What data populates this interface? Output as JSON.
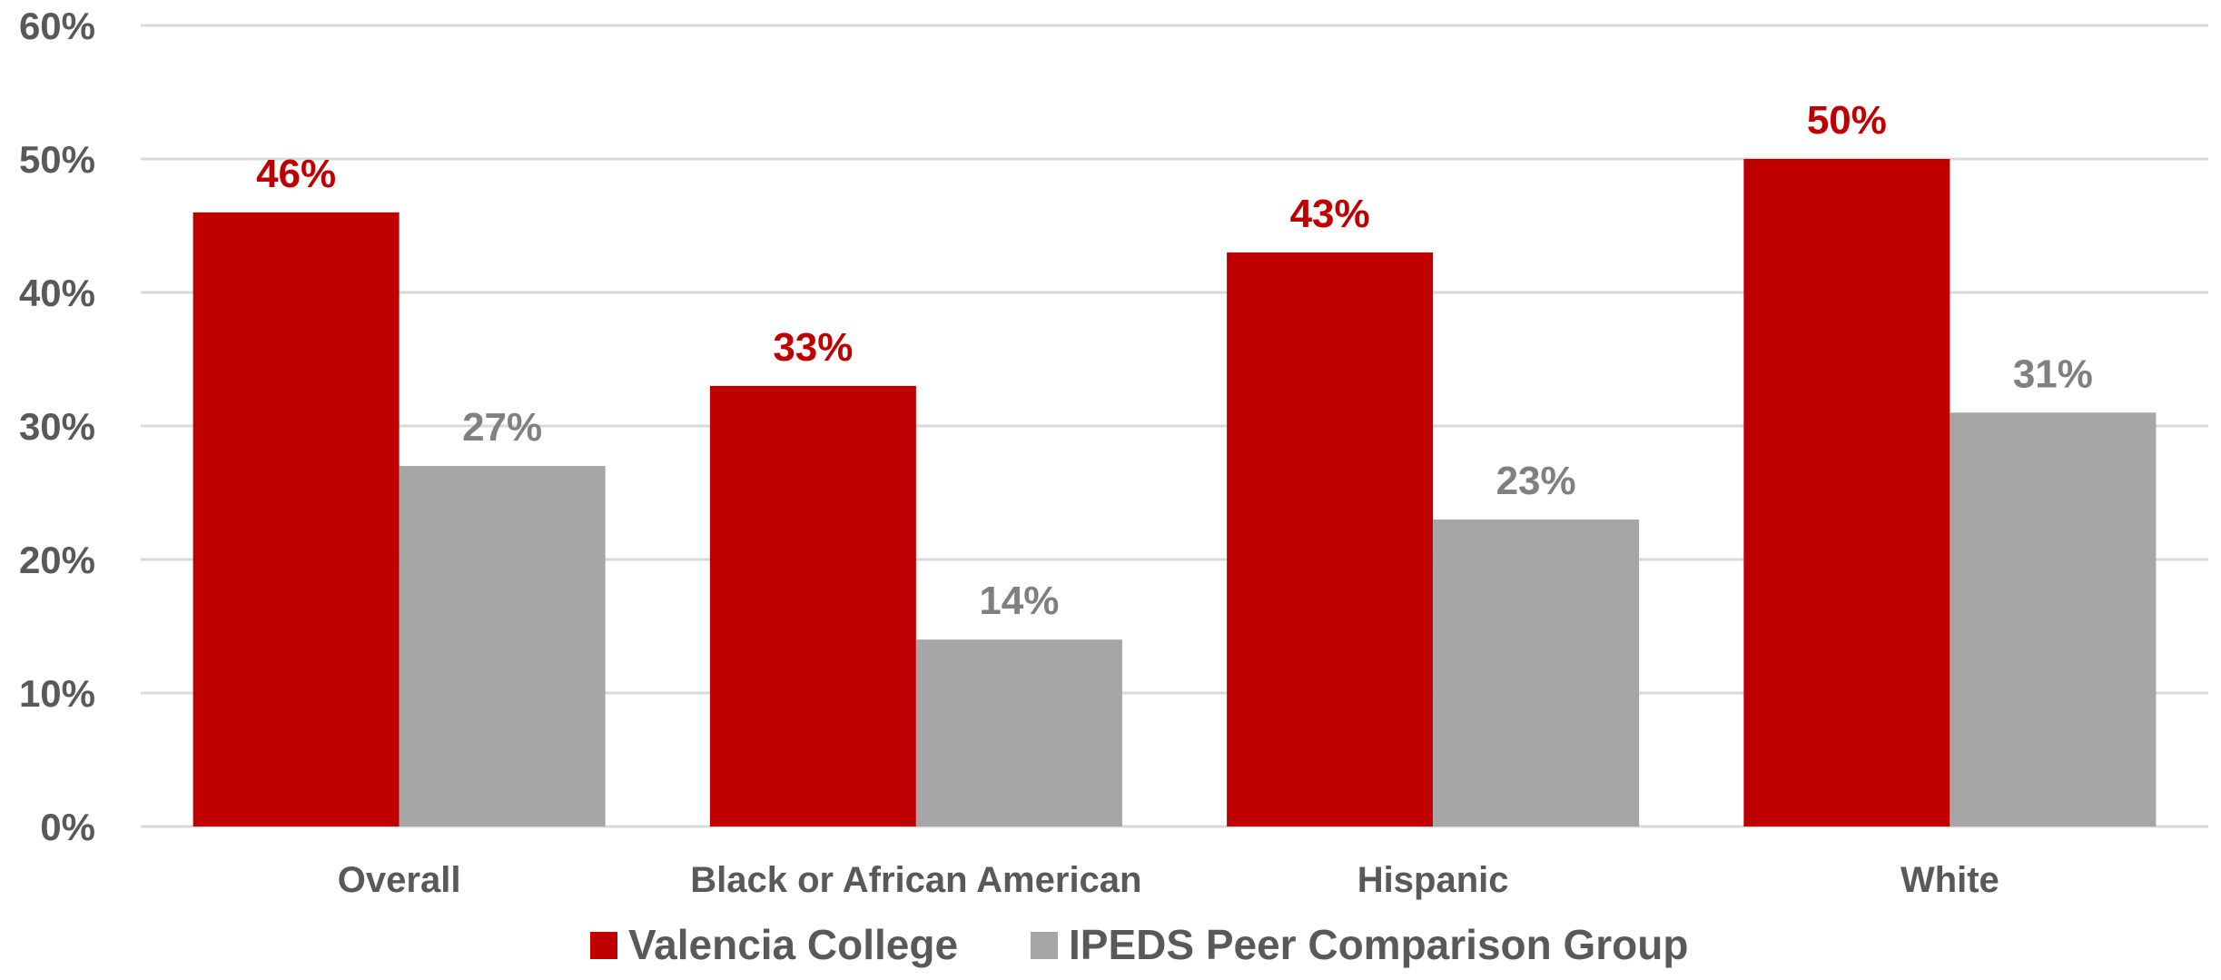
{
  "chart_data": {
    "type": "bar",
    "categories": [
      "Overall",
      "Black or African American",
      "Hispanic",
      "White"
    ],
    "series": [
      {
        "name": "Valencia College",
        "values": [
          46,
          33,
          43,
          50
        ],
        "color": "#C00000",
        "label_color": "#C00000"
      },
      {
        "name": "IPEDS Peer Comparison Group",
        "values": [
          27,
          14,
          23,
          31
        ],
        "color": "#A6A6A6",
        "label_color": "#808080"
      }
    ],
    "ylim": [
      0,
      60
    ],
    "yticks": [
      0,
      10,
      20,
      30,
      40,
      50,
      60
    ],
    "ytick_labels": [
      "0%",
      "10%",
      "20%",
      "30%",
      "40%",
      "50%",
      "60%"
    ],
    "value_suffix": "%",
    "grid": true,
    "grid_color": "#D9D9D9",
    "legend_position": "bottom"
  }
}
